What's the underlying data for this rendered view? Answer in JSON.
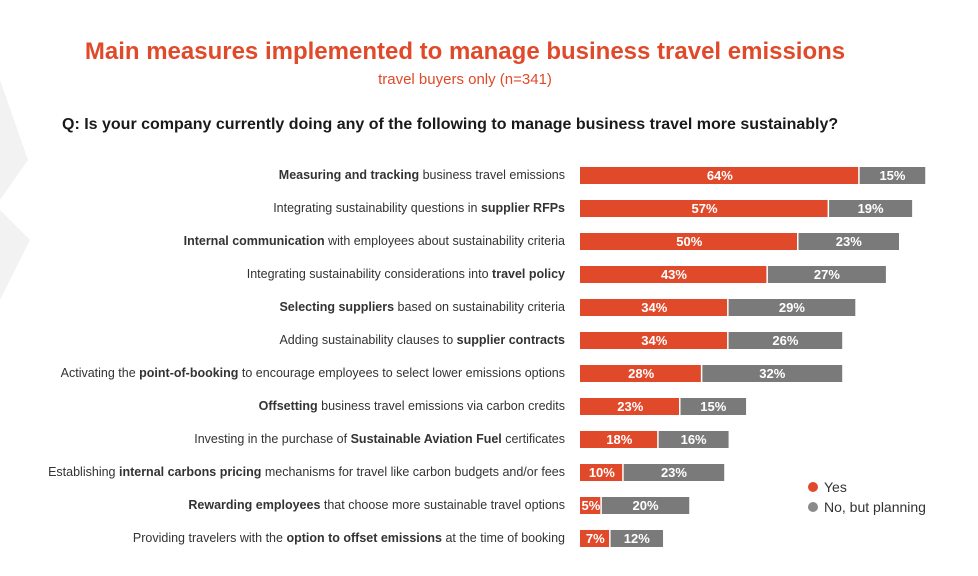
{
  "title": "Main measures implemented to manage business travel emissions",
  "subtitle": "travel buyers only (n=341)",
  "question": "Q: Is your company currently doing any of the following to manage business travel more sustainably?",
  "colors": {
    "yes": "#e04a2a",
    "planning": "#7a7a7a",
    "title": "#e04a2a"
  },
  "legend": [
    {
      "label": "Yes",
      "color": "#e04a2a"
    },
    {
      "label": "No, but planning",
      "color": "#8a8a8a"
    }
  ],
  "chart_data": {
    "type": "bar",
    "orientation": "horizontal",
    "stacked": true,
    "categories": [
      "Measuring and tracking business travel emissions",
      "Integrating sustainability questions in supplier RFPs",
      "Internal communication with employees about sustainability criteria",
      "Integrating sustainability considerations into travel policy",
      "Selecting suppliers based on sustainability criteria",
      "Adding sustainability clauses to supplier contracts",
      "Activating the point-of-booking to encourage employees to select lower emissions options",
      "Offsetting business travel emissions via carbon credits",
      "Investing in the purchase of Sustainable Aviation Fuel certificates",
      "Establishing internal carbons pricing mechanisms for travel like carbon budgets and/or fees",
      "Rewarding employees that choose more sustainable travel options",
      "Providing travelers with the option to offset emissions at the time of booking"
    ],
    "category_parts": [
      [
        {
          "t": "Measuring and tracking",
          "b": true
        },
        {
          "t": " business travel emissions",
          "b": false
        }
      ],
      [
        {
          "t": "Integrating sustainability questions in ",
          "b": false
        },
        {
          "t": "supplier RFPs",
          "b": true
        }
      ],
      [
        {
          "t": "Internal communication",
          "b": true
        },
        {
          "t": " with employees about sustainability criteria",
          "b": false
        }
      ],
      [
        {
          "t": "Integrating sustainability considerations into ",
          "b": false
        },
        {
          "t": "travel policy",
          "b": true
        }
      ],
      [
        {
          "t": "Selecting suppliers",
          "b": true
        },
        {
          "t": " based on sustainability criteria",
          "b": false
        }
      ],
      [
        {
          "t": "Adding sustainability clauses to ",
          "b": false
        },
        {
          "t": "supplier contracts",
          "b": true
        }
      ],
      [
        {
          "t": "Activating the ",
          "b": false
        },
        {
          "t": "point-of-booking",
          "b": true
        },
        {
          "t": " to encourage employees to select lower emissions options",
          "b": false
        }
      ],
      [
        {
          "t": "Offsetting",
          "b": true
        },
        {
          "t": " business travel emissions via carbon credits",
          "b": false
        }
      ],
      [
        {
          "t": "Investing in the purchase of ",
          "b": false
        },
        {
          "t": "Sustainable Aviation Fuel",
          "b": true
        },
        {
          "t": " certificates",
          "b": false
        }
      ],
      [
        {
          "t": "Establishing ",
          "b": false
        },
        {
          "t": "internal carbons pricing",
          "b": true
        },
        {
          "t": " mechanisms for travel like carbon budgets and/or fees",
          "b": false
        }
      ],
      [
        {
          "t": "Rewarding employees",
          "b": true
        },
        {
          "t": " that choose more sustainable travel options",
          "b": false
        }
      ],
      [
        {
          "t": "Providing travelers with the ",
          "b": false
        },
        {
          "t": "option to offset emissions",
          "b": true
        },
        {
          "t": " at the time of booking",
          "b": false
        }
      ]
    ],
    "series": [
      {
        "name": "Yes",
        "color": "#e04a2a",
        "values": [
          64,
          57,
          50,
          43,
          34,
          34,
          28,
          23,
          18,
          10,
          5,
          7
        ]
      },
      {
        "name": "No, but planning",
        "color": "#7a7a7a",
        "values": [
          15,
          19,
          23,
          27,
          29,
          26,
          32,
          15,
          16,
          23,
          20,
          12
        ]
      }
    ],
    "value_suffix": "%",
    "legend_position": "bottom-right",
    "grid": false
  }
}
